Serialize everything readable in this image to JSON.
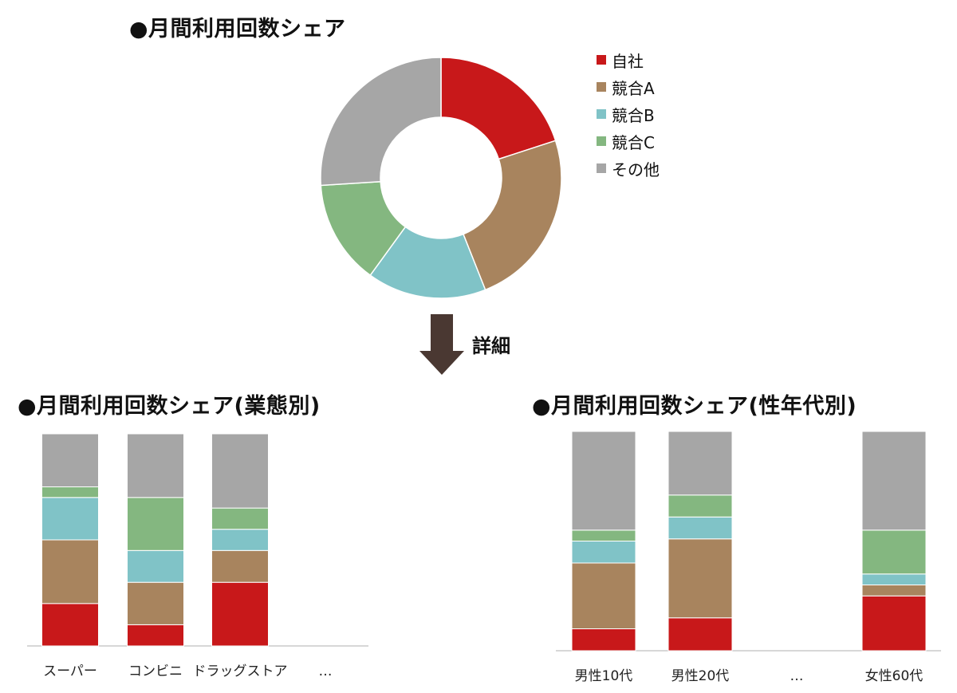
{
  "colors": {
    "自社": "#C8181A",
    "競合A": "#A8845E",
    "競合B": "#80C3C7",
    "競合C": "#84B780",
    "その他": "#A6A6A6",
    "arrow": "#4A3832"
  },
  "series_order": [
    "自社",
    "競合A",
    "競合B",
    "競合C",
    "その他"
  ],
  "arrow": {
    "label": "詳細",
    "icon": "down-arrow-icon"
  },
  "chart_data": [
    {
      "type": "pie",
      "subtype": "donut",
      "title": "●月間利用回数シェア",
      "labels": [
        "自社",
        "競合A",
        "競合B",
        "競合C",
        "その他"
      ],
      "values": [
        20,
        24,
        16,
        14,
        26
      ],
      "legend": "right"
    },
    {
      "type": "bar",
      "stacked": true,
      "percent": true,
      "title": "●月間利用回数シェア(業態別)",
      "categories": [
        "スーパー",
        "コンビニ",
        "ドラッグストア",
        "…"
      ],
      "series": [
        {
          "name": "自社",
          "values": [
            20,
            10,
            30,
            null
          ]
        },
        {
          "name": "競合A",
          "values": [
            30,
            20,
            15,
            null
          ]
        },
        {
          "name": "競合B",
          "values": [
            20,
            15,
            10,
            null
          ]
        },
        {
          "name": "競合C",
          "values": [
            5,
            25,
            10,
            null
          ]
        },
        {
          "name": "その他",
          "values": [
            25,
            30,
            35,
            null
          ]
        }
      ],
      "ylim": [
        0,
        100
      ]
    },
    {
      "type": "bar",
      "stacked": true,
      "percent": true,
      "title": "●月間利用回数シェア(性年代別)",
      "categories": [
        "男性10代",
        "男性20代",
        "…",
        "女性60代"
      ],
      "series": [
        {
          "name": "自社",
          "values": [
            10,
            15,
            null,
            25
          ]
        },
        {
          "name": "競合A",
          "values": [
            30,
            36,
            null,
            5
          ]
        },
        {
          "name": "競合B",
          "values": [
            10,
            10,
            null,
            5
          ]
        },
        {
          "name": "競合C",
          "values": [
            5,
            10,
            null,
            20
          ]
        },
        {
          "name": "その他",
          "values": [
            45,
            29,
            null,
            45
          ]
        }
      ],
      "ylim": [
        0,
        100
      ]
    }
  ]
}
